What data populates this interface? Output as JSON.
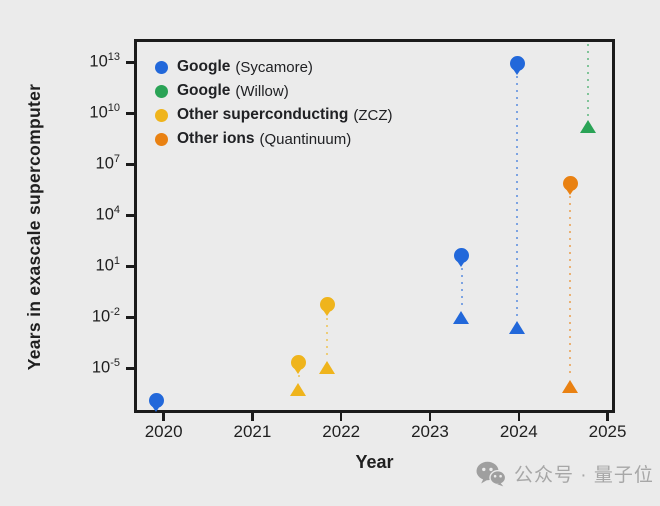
{
  "watermark": {
    "text": "公众号 · 量子位",
    "icon": "wechat-chat-bubbles",
    "color": "#a0a0a0"
  },
  "chart_data": {
    "type": "scatter",
    "title": "",
    "xlabel": "Year",
    "ylabel": "Years in exascale supercomputer",
    "y_scale": "log",
    "grid": false,
    "legend_position": "top-left",
    "x_ticks": [
      2020,
      2021,
      2022,
      2023,
      2024,
      2025
    ],
    "y_tick_exponents": [
      13,
      10,
      7,
      4,
      1,
      -2,
      -5
    ],
    "x_range": [
      2019.7,
      2025.05
    ],
    "y_exp_range": [
      -7.45,
      14.2
    ],
    "colors": {
      "background": "#ebebeb",
      "axis": "#1b1b1b",
      "text": "#1f1f1f"
    },
    "series": [
      {
        "name": "Google",
        "detail": "(Sycamore)",
        "color": "#2268da",
        "points": [
          {
            "year": 2019.92,
            "circle_exp": -6.9,
            "circle_years": 1.2e-07,
            "triangle_exp": null,
            "triangle_years": null
          },
          {
            "year": 2023.36,
            "circle_exp": 1.65,
            "circle_years": 45,
            "triangle_exp": -2.05,
            "triangle_years": 0.009
          },
          {
            "year": 2023.98,
            "circle_exp": 12.95,
            "circle_years": 10000000000000.0,
            "triangle_exp": -2.6,
            "triangle_years": 0.0025
          }
        ]
      },
      {
        "name": "Google",
        "detail": "(Willow)",
        "color": "#2aa356",
        "points": [
          {
            "year": 2024.78,
            "circle_exp": null,
            "circle_years": null,
            "circle_offscale_high": true,
            "line_from_top": true,
            "triangle_exp": 9.2,
            "triangle_years": 1600000000.0
          }
        ]
      },
      {
        "name": "Other superconducting",
        "detail": "(ZCZ)",
        "color": "#efb41c",
        "points": [
          {
            "year": 2021.52,
            "circle_exp": -4.65,
            "circle_years": 2.2e-05,
            "triangle_exp": -6.25,
            "triangle_years": 5.6e-07
          },
          {
            "year": 2021.84,
            "circle_exp": -1.25,
            "circle_years": 0.056,
            "triangle_exp": -5.0,
            "triangle_years": 1e-05
          }
        ]
      },
      {
        "name": "Other ions",
        "detail": "(Quantinuum)",
        "color": "#e98112",
        "points": [
          {
            "year": 2024.58,
            "circle_exp": 5.9,
            "circle_years": 800000.0,
            "triangle_exp": -6.1,
            "triangle_years": 8e-07
          }
        ]
      }
    ]
  }
}
